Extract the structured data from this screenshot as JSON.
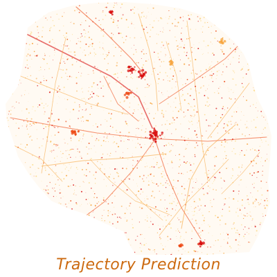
{
  "caption": {
    "text": "Trajectory Prediction"
  },
  "colors": {
    "background": "#ffffff",
    "caption": "#cc6a10",
    "trace_dense": "#d80f0f",
    "trace_mid": "#ee4a16",
    "trace_light": "#f7a33a",
    "trace_pale": "#fbd77c"
  }
}
